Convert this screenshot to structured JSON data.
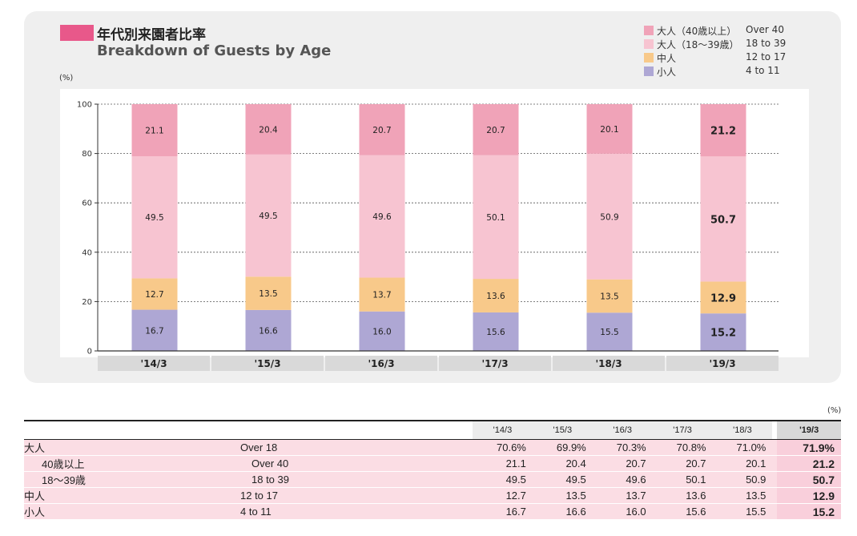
{
  "title": {
    "jp": "年代別来園者比率",
    "en": "Breakdown of Guests by Age",
    "accent_color": "#e8588a"
  },
  "unit": "(%)",
  "legend": [
    {
      "jp": "大人（40歳以上）",
      "en": "Over 40",
      "color": "#f0a3b8"
    },
    {
      "jp": "大人（18〜39歳）",
      "en": "18 to 39",
      "color": "#f7c4d1"
    },
    {
      "jp": "中人",
      "en": "12 to 17",
      "color": "#f8c98a"
    },
    {
      "jp": "小人",
      "en": "4 to 11",
      "color": "#aea7d4"
    }
  ],
  "chart_data": {
    "type": "bar",
    "stacked": true,
    "categories": [
      "'14/3",
      "'15/3",
      "'16/3",
      "'17/3",
      "'18/3",
      "'19/3"
    ],
    "ylim": [
      0,
      100
    ],
    "yticks": [
      0,
      20,
      40,
      60,
      80,
      100
    ],
    "ylabel": "(%)",
    "highlight_last": true,
    "series": [
      {
        "name": "小人 4 to 11",
        "color": "#aea7d4",
        "values": [
          16.7,
          16.6,
          16.0,
          15.6,
          15.5,
          15.2
        ],
        "labels": [
          "16.7",
          "16.6",
          "16.0",
          "15.6",
          "15.5",
          "15.2"
        ]
      },
      {
        "name": "中人 12 to 17",
        "color": "#f8c98a",
        "values": [
          12.7,
          13.5,
          13.7,
          13.6,
          13.5,
          12.9
        ],
        "labels": [
          "12.7",
          "13.5",
          "13.7",
          "13.6",
          "13.5",
          "12.9"
        ]
      },
      {
        "name": "大人（18〜39歳） 18 to 39",
        "color": "#f7c4d1",
        "values": [
          49.5,
          49.5,
          49.6,
          50.1,
          50.9,
          50.7
        ],
        "labels": [
          "49.5",
          "49.5",
          "49.6",
          "50.1",
          "50.9",
          "50.7"
        ]
      },
      {
        "name": "大人（40歳以上） Over 40",
        "color": "#f0a3b8",
        "values": [
          21.1,
          20.4,
          20.7,
          20.7,
          20.1,
          21.2
        ],
        "labels": [
          "21.1",
          "20.4",
          "20.7",
          "20.7",
          "20.1",
          "21.2"
        ]
      }
    ]
  },
  "table": {
    "unit": "(%)",
    "headers": [
      "'14/3",
      "'15/3",
      "'16/3",
      "'17/3",
      "'18/3",
      "'19/3"
    ],
    "rows": [
      {
        "jp": "大人",
        "en": "Over 18",
        "indent": false,
        "values": [
          "70.6%",
          "69.9%",
          "70.3%",
          "70.8%",
          "71.0%",
          "71.9%"
        ]
      },
      {
        "jp": "40歳以上",
        "en": "Over 40",
        "indent": true,
        "values": [
          "21.1",
          "20.4",
          "20.7",
          "20.7",
          "20.1",
          "21.2"
        ]
      },
      {
        "jp": "18〜39歳",
        "en": "18 to 39",
        "indent": true,
        "values": [
          "49.5",
          "49.5",
          "49.6",
          "50.1",
          "50.9",
          "50.7"
        ]
      },
      {
        "jp": "中人",
        "en": "12 to 17",
        "indent": false,
        "values": [
          "12.7",
          "13.5",
          "13.7",
          "13.6",
          "13.5",
          "12.9"
        ]
      },
      {
        "jp": "小人",
        "en": "4 to 11",
        "indent": false,
        "values": [
          "16.7",
          "16.6",
          "16.0",
          "15.6",
          "15.5",
          "15.2"
        ]
      }
    ]
  }
}
